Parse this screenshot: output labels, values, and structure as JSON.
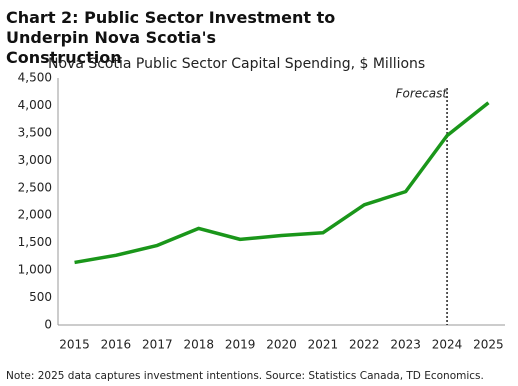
{
  "chart_data": {
    "type": "line",
    "title": "Chart 2: Public Sector Investment to Underpin Nova Scotia's Construction",
    "subtitle": "Nova Scotia Public Sector Capital Spending, $ Millions",
    "note": "Note: 2025 data captures investment intentions. Source: Statistics Canada, TD Economics.",
    "x": [
      2015,
      2016,
      2017,
      2018,
      2019,
      2020,
      2021,
      2022,
      2023,
      2024,
      2025
    ],
    "series": [
      {
        "name": "Public Sector Capital Spending",
        "color": "#1a961a",
        "values": [
          1140,
          1270,
          1450,
          1760,
          1560,
          1630,
          1680,
          2190,
          2430,
          3450,
          4050
        ]
      }
    ],
    "xlim": [
      2014.6,
      2025.4
    ],
    "xticks": [
      2015,
      2016,
      2017,
      2018,
      2019,
      2020,
      2021,
      2022,
      2023,
      2024,
      2025
    ],
    "ylim": [
      0,
      4500
    ],
    "yticks": [
      0,
      500,
      {
        "value": 1000,
        "label": "1,000"
      },
      {
        "value": 1500,
        "label": "1,500"
      },
      {
        "value": 2000,
        "label": "2,000"
      },
      {
        "value": 2500,
        "label": "2,500"
      },
      {
        "value": 3000,
        "label": "3,000"
      },
      {
        "value": 3500,
        "label": "3,500"
      },
      {
        "value": 4000,
        "label": "4,000"
      },
      {
        "value": 4500,
        "label": "4,500"
      }
    ],
    "grid": false,
    "annotations": [
      {
        "text": "Forecast",
        "x": 2024
      }
    ]
  }
}
